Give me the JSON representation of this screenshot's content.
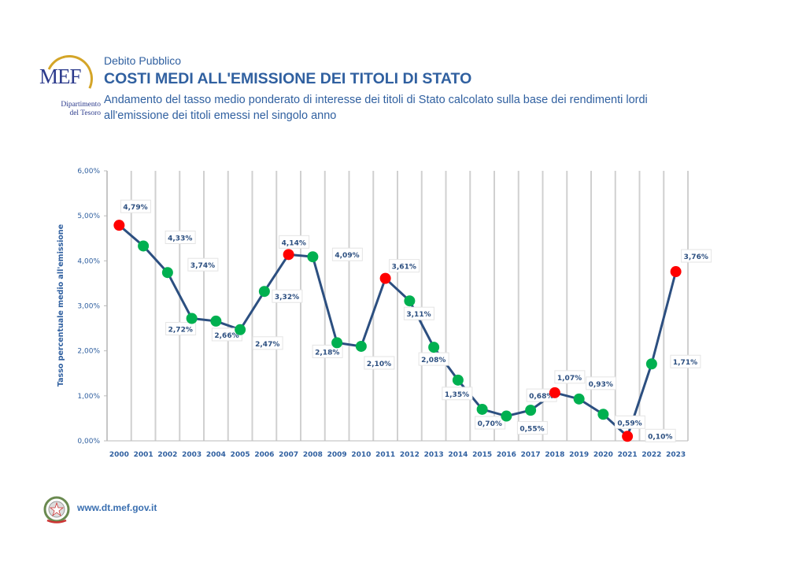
{
  "header": {
    "logo_text": "MEF",
    "logo_subtitle": [
      "Dipartimento",
      "del Tesoro"
    ],
    "section": "Debito Pubblico",
    "title": "COSTI MEDI ALL'EMISSIONE DEI TITOLI DI STATO",
    "subtitle": "Andamento del tasso medio ponderato di interesse dei titoli di Stato calcolato sulla base dei rendimenti lordi all'emissione dei titoli emessi nel singolo anno"
  },
  "footer": {
    "url": "www.dt.mef.gov.it"
  },
  "colors": {
    "line": "#2c4f80",
    "high": "#ff0000",
    "low": "#00b050",
    "text": "#3060a0"
  },
  "chart_data": {
    "type": "line",
    "title": "",
    "xlabel": "",
    "ylabel": "Tasso percentuale medio all'emissione",
    "ylim": [
      0,
      6
    ],
    "yticks": [
      "0,00%",
      "1,00%",
      "2,00%",
      "3,00%",
      "4,00%",
      "5,00%",
      "6,00%"
    ],
    "grid": "vertical",
    "categories": [
      "2000",
      "2001",
      "2002",
      "2003",
      "2004",
      "2005",
      "2006",
      "2007",
      "2008",
      "2009",
      "2010",
      "2011",
      "2012",
      "2013",
      "2014",
      "2015",
      "2016",
      "2017",
      "2018",
      "2019",
      "2020",
      "2021",
      "2022",
      "2023"
    ],
    "values": [
      4.79,
      4.33,
      3.74,
      2.72,
      2.66,
      2.47,
      3.32,
      4.14,
      4.09,
      2.18,
      2.1,
      3.61,
      3.11,
      2.08,
      1.35,
      0.7,
      0.55,
      0.68,
      1.07,
      0.93,
      0.59,
      0.1,
      1.71,
      3.76
    ],
    "labels": [
      "4,79%",
      "4,33%",
      "3,74%",
      "2,72%",
      "2,66%",
      "2,47%",
      "3,32%",
      "4,14%",
      "4,09%",
      "2,18%",
      "2,10%",
      "3,61%",
      "3,11%",
      "2,08%",
      "1,35%",
      "0,70%",
      "0,55%",
      "0,68%",
      "1,07%",
      "0,93%",
      "0,59%",
      "0,10%",
      "1,71%",
      "3,76%"
    ],
    "marker_color": [
      "red",
      "green",
      "green",
      "green",
      "green",
      "green",
      "green",
      "red",
      "green",
      "green",
      "green",
      "red",
      "green",
      "green",
      "green",
      "green",
      "green",
      "green",
      "red",
      "green",
      "green",
      "red",
      "green",
      "red"
    ]
  }
}
